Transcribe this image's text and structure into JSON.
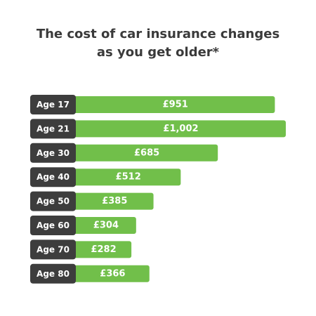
{
  "chart_data": {
    "type": "bar",
    "orientation": "horizontal",
    "title": "The cost of car insurance changes as you get older*",
    "categories": [
      "Age 17",
      "Age 21",
      "Age 30",
      "Age 40",
      "Age 50",
      "Age 60",
      "Age 70",
      "Age 80"
    ],
    "values": [
      951,
      1002,
      685,
      512,
      385,
      304,
      282,
      366
    ],
    "value_labels": [
      "£951",
      "£1,002",
      "£685",
      "£512",
      "£385",
      "£304",
      "£282",
      "£366"
    ],
    "color": "#71bf4a",
    "label_color": "#3d3d3d"
  }
}
